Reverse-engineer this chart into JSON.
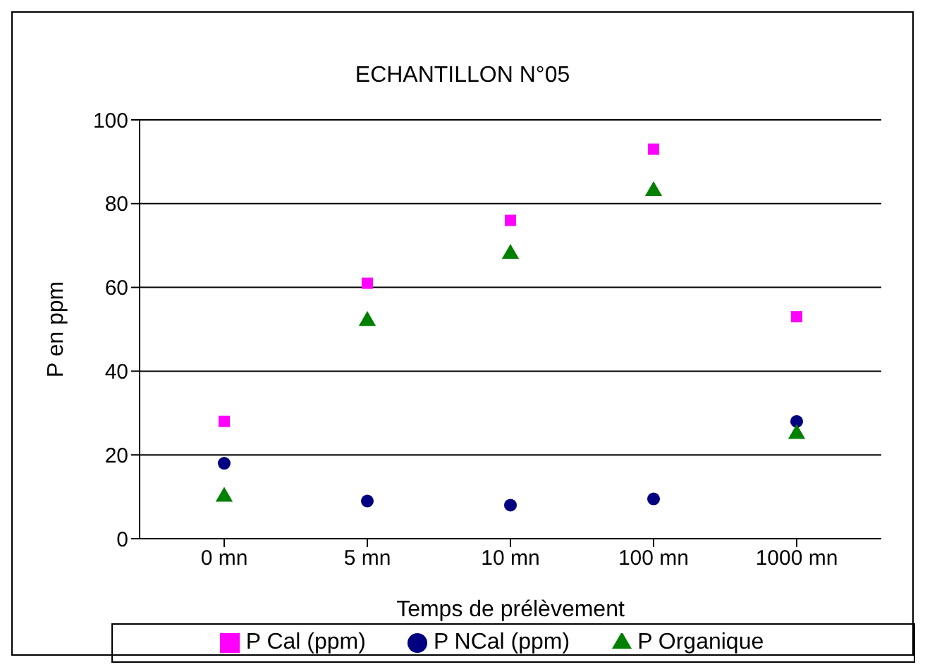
{
  "chart_data": {
    "type": "scatter",
    "title": "ECHANTILLON N°05",
    "xlabel": "Temps de prélèvement",
    "ylabel": "P en ppm",
    "categories": [
      "0 mn",
      "5 mn",
      "10 mn",
      "100 mn",
      "1000 mn"
    ],
    "series": [
      {
        "name": "P NCal (ppm)",
        "color": "#000080",
        "marker": "circle",
        "values": [
          18,
          9,
          8,
          9.5,
          28
        ]
      },
      {
        "name": "P Cal (ppm)",
        "color": "#ff00ff",
        "marker": "square",
        "values": [
          28,
          61,
          76,
          93,
          53
        ]
      },
      {
        "name": "P Organique",
        "color": "#008000",
        "marker": "triangle",
        "values": [
          10,
          52,
          68,
          83,
          25
        ]
      }
    ],
    "ylim": [
      0,
      100
    ],
    "yticks": [
      0,
      20,
      40,
      60,
      80,
      100
    ],
    "grid": "y",
    "legend": "bottom"
  }
}
